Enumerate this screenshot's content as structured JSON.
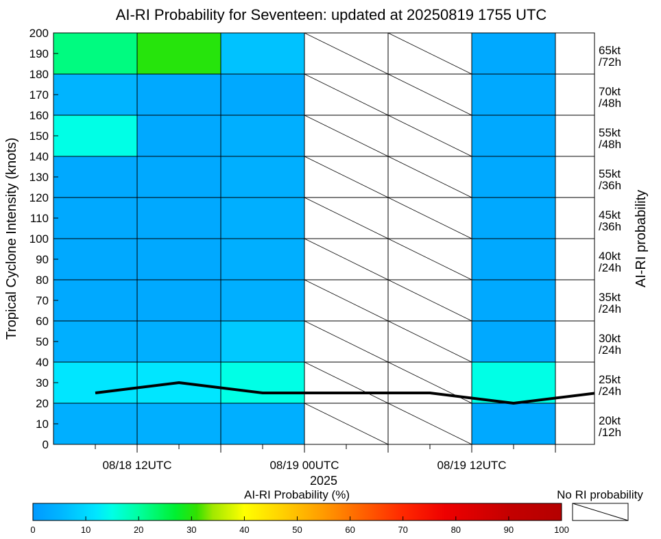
{
  "chart_data": {
    "type": "heatmap",
    "title": "AI-RI Probability for Seventeen: updated at 20250819 1755 UTC",
    "ylabel": "Tropical Cyclone Intensity (knots)",
    "y2label": "AI-RI probability",
    "xlabel": "2025",
    "ylim": [
      0,
      200
    ],
    "yticks": [
      "0",
      "10",
      "20",
      "30",
      "40",
      "50",
      "60",
      "70",
      "80",
      "90",
      "100",
      "110",
      "120",
      "130",
      "140",
      "150",
      "160",
      "170",
      "180",
      "190",
      "200"
    ],
    "xticks": [
      "08/18 12UTC",
      "08/19 00UTC",
      "08/19 12UTC"
    ],
    "time_columns": [
      "08/18 06UTC",
      "08/18 12UTC",
      "08/18 18UTC",
      "08/19 00UTC",
      "08/19 06UTC",
      "08/19 12UTC"
    ],
    "intensity_bins": [
      [
        0,
        20
      ],
      [
        20,
        40
      ],
      [
        40,
        60
      ],
      [
        60,
        80
      ],
      [
        80,
        100
      ],
      [
        100,
        120
      ],
      [
        120,
        140
      ],
      [
        140,
        160
      ],
      [
        160,
        180
      ],
      [
        180,
        200
      ]
    ],
    "ri_thresholds": [
      "20kt\n/12h",
      "25kt\n/24h",
      "30kt\n/24h",
      "35kt\n/24h",
      "40kt\n/24h",
      "45kt\n/36h",
      "55kt\n/36h",
      "55kt\n/48h",
      "70kt\n/48h",
      "65kt\n/72h"
    ],
    "probabilities": [
      [
        4,
        4,
        4,
        null,
        null,
        3
      ],
      [
        12,
        12,
        15,
        null,
        null,
        15
      ],
      [
        4,
        4,
        8,
        null,
        null,
        3
      ],
      [
        3,
        3,
        4,
        null,
        null,
        3
      ],
      [
        3,
        3,
        4,
        null,
        null,
        3
      ],
      [
        3,
        3,
        4,
        null,
        null,
        3
      ],
      [
        3,
        3,
        4,
        null,
        null,
        3
      ],
      [
        15,
        3,
        4,
        null,
        null,
        3
      ],
      [
        5,
        3,
        3,
        null,
        null,
        3
      ],
      [
        22,
        30,
        7,
        null,
        null,
        3
      ]
    ],
    "intensity_line": {
      "x": [
        "08/18 06UTC",
        "08/18 12UTC",
        "08/18 18UTC",
        "08/19 00UTC",
        "08/19 06UTC",
        "08/19 12UTC",
        "08/19 18UTC"
      ],
      "y": [
        25,
        30,
        25,
        25,
        25,
        20,
        25
      ]
    },
    "colorbar": {
      "label": "AI-RI Probability (%)",
      "ticks": [
        "0",
        "10",
        "20",
        "30",
        "40",
        "50",
        "60",
        "70",
        "80",
        "90",
        "100"
      ],
      "range": [
        0,
        100
      ]
    },
    "no_ri_legend": "No RI probability"
  }
}
